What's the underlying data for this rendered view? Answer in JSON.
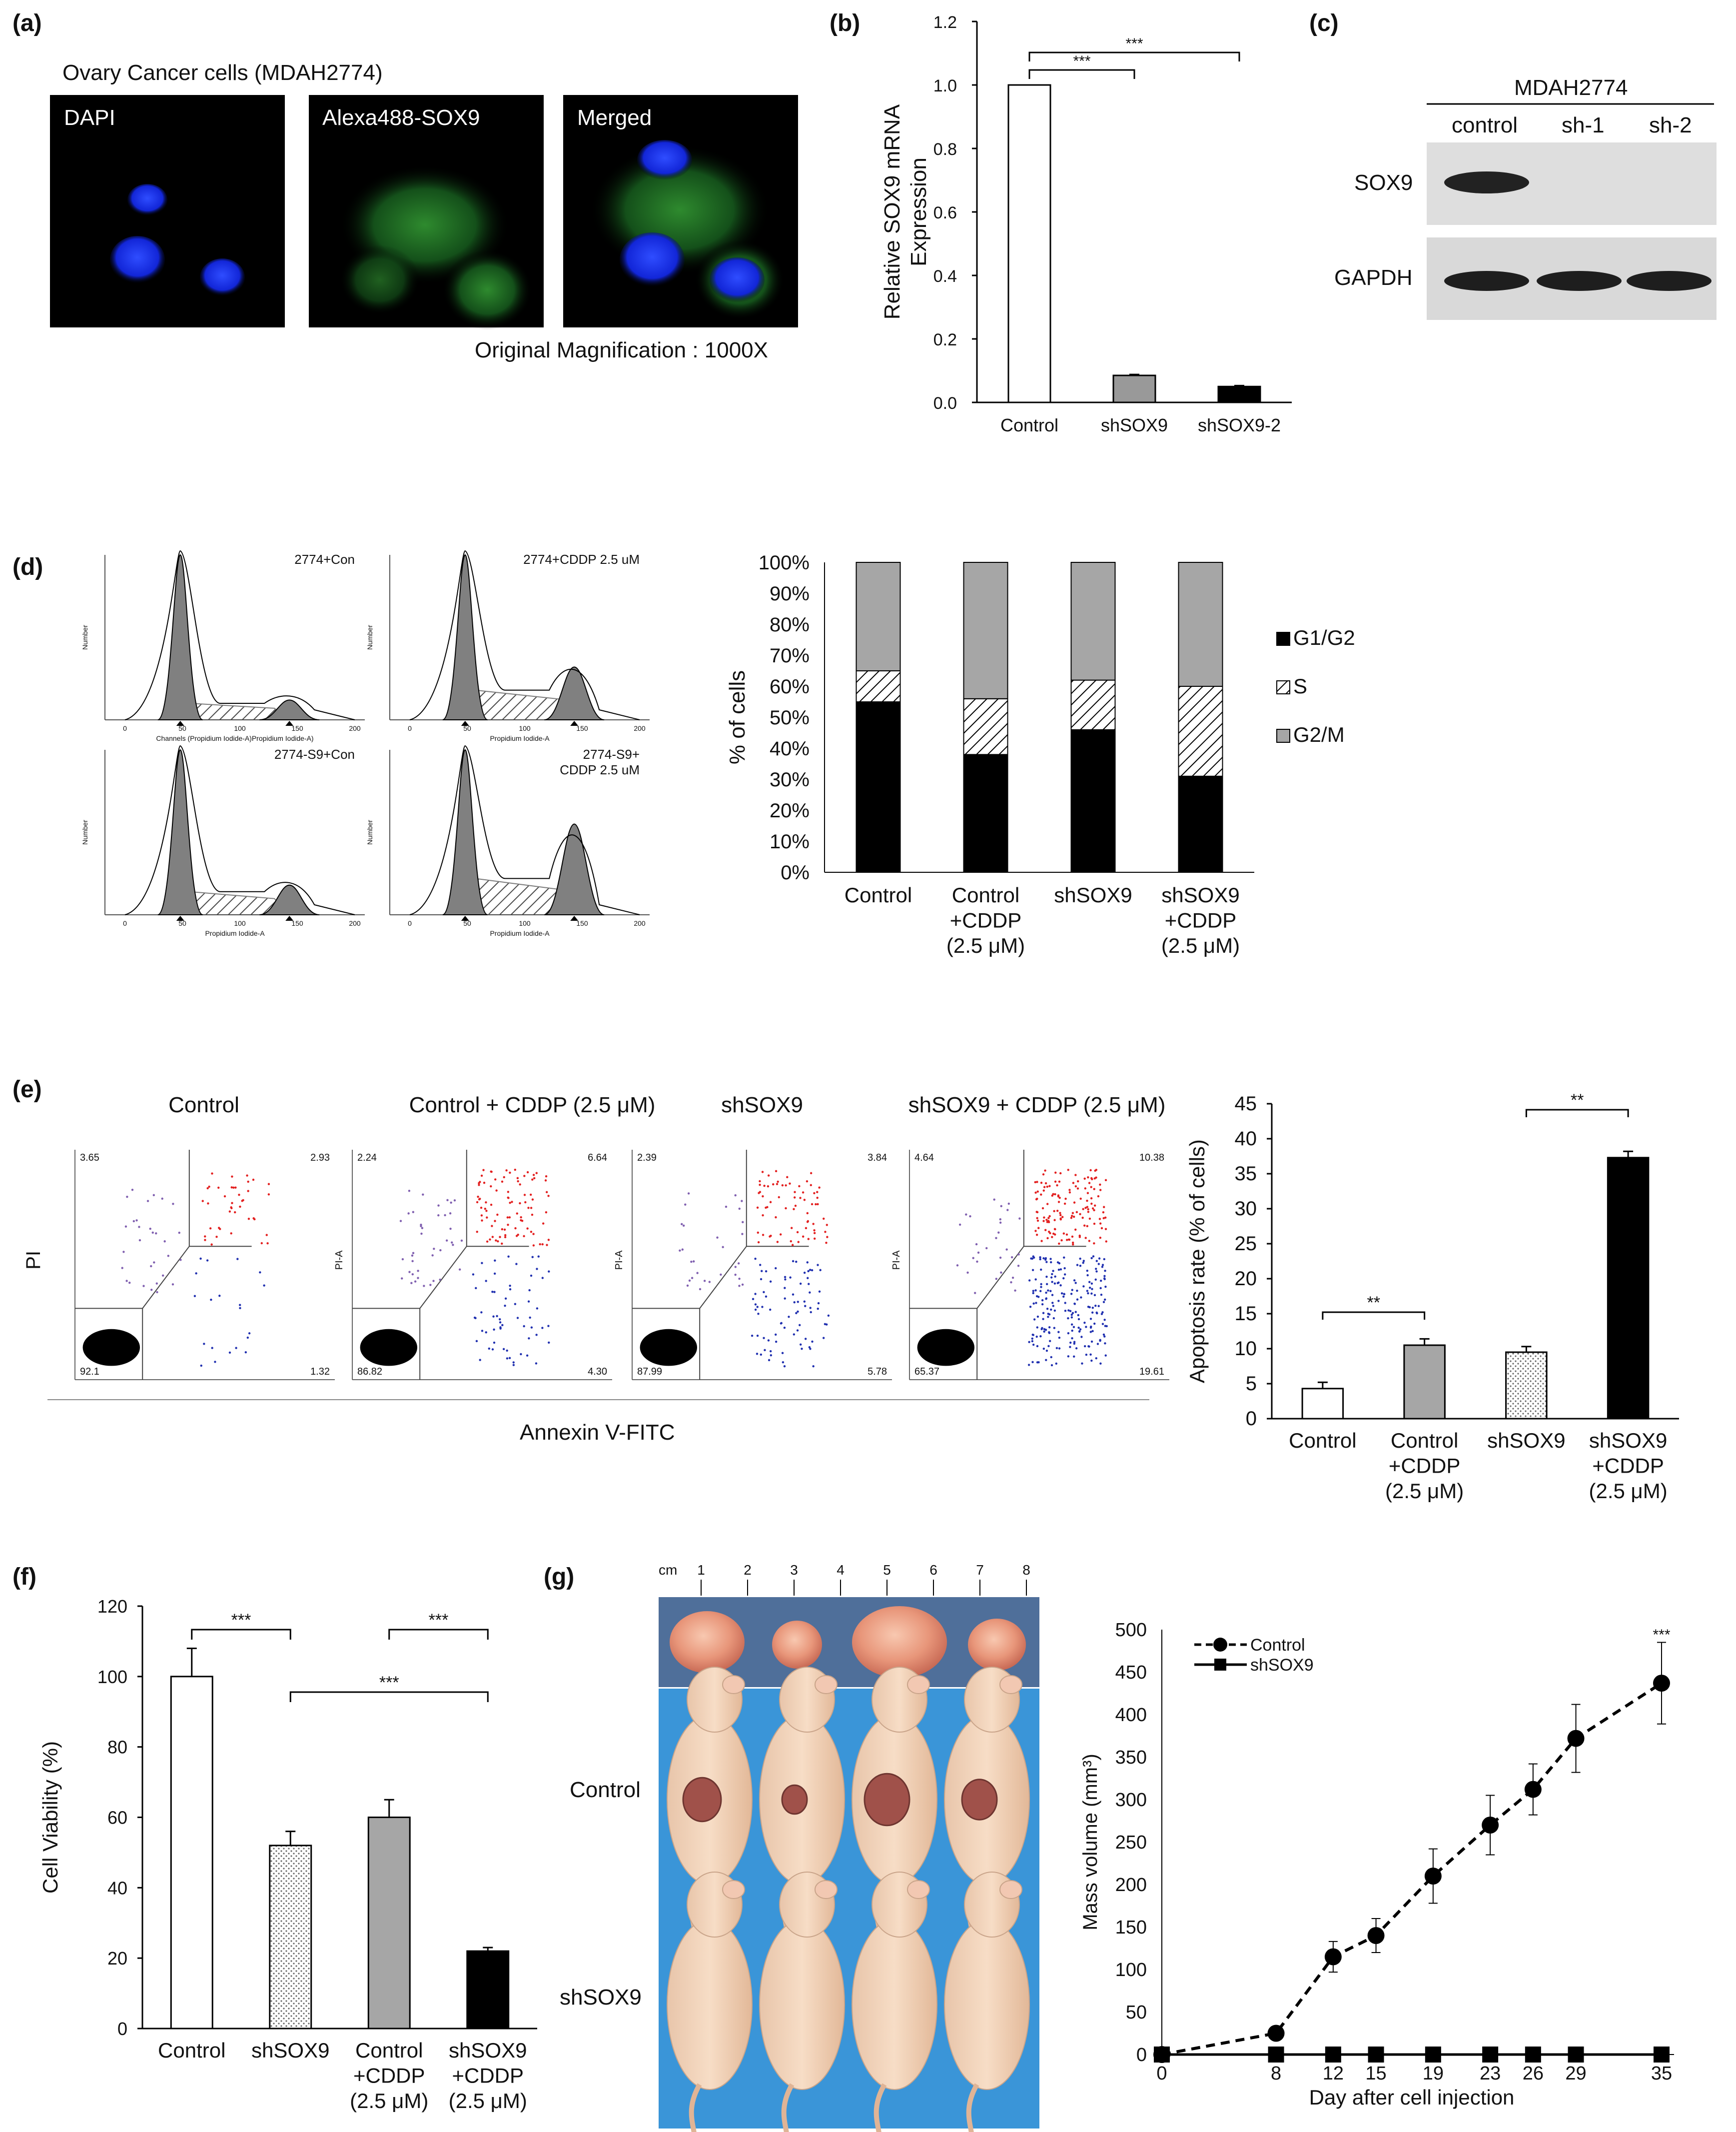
{
  "panels": {
    "a": {
      "label": "(a)",
      "title": "Ovary Cancer cells (MDAH2774)",
      "images": [
        "DAPI",
        "Alexa488-SOX9",
        "Merged"
      ],
      "caption": "Original Magnification : 1000X"
    },
    "b": {
      "label": "(b)",
      "significance": [
        "***",
        "***"
      ]
    },
    "c": {
      "label": "(c)",
      "cell_line": "MDAH2774",
      "lanes": [
        "control",
        "sh-1",
        "sh-2"
      ],
      "bands": [
        "SOX9",
        "GAPDH"
      ],
      "sox9_intensity": [
        1,
        0,
        0
      ],
      "gapdh_intensity": [
        1,
        1,
        1
      ]
    },
    "d": {
      "label": "(d)",
      "histograms": [
        "2774+Con",
        "2774+CDDP 2.5 uM",
        "2774-S9+Con",
        "2774-S9+\nCDDP 2.5 uM"
      ],
      "hist_axis": {
        "ylabel": "Number",
        "xlabel_top_left": "Channels (Propidium Iodide-A)Propidium Iodide-A)",
        "xlabel": "Propidium Iodide-A",
        "xticks": [
          "0",
          "50",
          "100",
          "150",
          "200"
        ]
      }
    },
    "e": {
      "label": "(e)",
      "plot_titles": [
        "Control",
        "Control + CDDP (2.5 μM)",
        "shSOX9",
        "shSOX9 + CDDP (2.5 μM)"
      ],
      "quadrants": [
        {
          "ul": "3.65",
          "ur": "2.93",
          "ll": "92.1",
          "lr": "1.32"
        },
        {
          "ul": "2.24",
          "ur": "6.64",
          "ll": "86.82",
          "lr": "4.30"
        },
        {
          "ul": "2.39",
          "ur": "3.84",
          "ll": "87.99",
          "lr": "5.78"
        },
        {
          "ul": "4.64",
          "ur": "10.38",
          "ll": "65.37",
          "lr": "19.61"
        }
      ],
      "ylabel": "PI",
      "ylabel_alt": "PI-A",
      "xlabel": "Annexin V-FITC",
      "significance": [
        "**",
        "**"
      ]
    },
    "f": {
      "label": "(f)",
      "significance": [
        "***",
        "***",
        "***"
      ]
    },
    "g": {
      "label": "(g)",
      "ruler": [
        "cm",
        "1",
        "2",
        "3",
        "4",
        "5",
        "6",
        "7",
        "8"
      ],
      "groups": [
        "Control",
        "shSOX9"
      ],
      "significance": "***"
    }
  },
  "chart_data": [
    {
      "id": "b",
      "type": "bar",
      "categories": [
        "Control",
        "shSOX9",
        "shSOX9-2"
      ],
      "values": [
        1.0,
        0.085,
        0.05
      ],
      "errors": [
        0.0,
        0.003,
        0.003
      ],
      "ylabel": "Relative SOX9 mRNA\nExpression",
      "ylim": [
        0,
        1.2
      ],
      "yticks": [
        "0.0",
        "0.2",
        "0.4",
        "0.6",
        "0.8",
        "1.0",
        "1.2"
      ],
      "fills": [
        "#ffffff",
        "#999999",
        "#000000"
      ]
    },
    {
      "id": "d",
      "type": "bar",
      "stacked": true,
      "categories": [
        "Control",
        "Control\n+CDDP\n(2.5 μM)",
        "shSOX9",
        "shSOX9\n+CDDP\n(2.5 μM)"
      ],
      "series": [
        {
          "name": "G1/G2",
          "values": [
            55,
            38,
            46,
            31
          ],
          "color": "#000000"
        },
        {
          "name": "S",
          "values": [
            10,
            18,
            16,
            29
          ],
          "color": "hatch"
        },
        {
          "name": "G2/M",
          "values": [
            35,
            44,
            38,
            40
          ],
          "color": "#a6a6a6"
        }
      ],
      "ylabel": "% of cells",
      "ylim": [
        0,
        100
      ],
      "yticks": [
        "0%",
        "10%",
        "20%",
        "30%",
        "40%",
        "50%",
        "60%",
        "70%",
        "80%",
        "90%",
        "100%"
      ],
      "legend": "right"
    },
    {
      "id": "e",
      "type": "bar",
      "categories": [
        "Control",
        "Control\n+CDDP\n(2.5 μM)",
        "shSOX9",
        "shSOX9\n+CDDP\n(2.5 μM)"
      ],
      "values": [
        4.3,
        10.5,
        9.5,
        37.3
      ],
      "errors": [
        0.9,
        0.9,
        0.8,
        0.9
      ],
      "ylabel": "Apoptosis rate (% of cells)",
      "ylim": [
        0,
        45
      ],
      "yticks": [
        "0",
        "5",
        "10",
        "15",
        "20",
        "25",
        "30",
        "35",
        "40",
        "45"
      ],
      "fills": [
        "#ffffff",
        "#a6a6a6",
        "dots",
        "#000000"
      ]
    },
    {
      "id": "f",
      "type": "bar",
      "categories": [
        "Control",
        "shSOX9",
        "Control\n+CDDP\n(2.5 μM)",
        "shSOX9\n+CDDP\n(2.5 μM)"
      ],
      "values": [
        100,
        52,
        60,
        22
      ],
      "errors": [
        8,
        4,
        5,
        1
      ],
      "ylabel": "Cell Viability (%)",
      "ylim": [
        0,
        120
      ],
      "yticks": [
        "0",
        "20",
        "40",
        "60",
        "80",
        "100",
        "120"
      ],
      "fills": [
        "#ffffff",
        "dots",
        "#a6a6a6",
        "#000000"
      ]
    },
    {
      "id": "g",
      "type": "line",
      "x": [
        0,
        8,
        12,
        15,
        19,
        23,
        26,
        29,
        35
      ],
      "series": [
        {
          "name": "Control",
          "values": [
            0,
            25,
            115,
            140,
            210,
            270,
            312,
            372,
            437
          ],
          "errors": [
            0,
            5,
            18,
            20,
            32,
            35,
            30,
            40,
            48
          ]
        },
        {
          "name": "shSOX9",
          "values": [
            0,
            0,
            0,
            0,
            0,
            0,
            0,
            0,
            0
          ]
        }
      ],
      "xlabel": "Day after cell injection",
      "ylabel": "Mass volume (mm³)",
      "ylim": [
        0,
        500
      ],
      "yticks": [
        "0",
        "50",
        "100",
        "150",
        "200",
        "250",
        "300",
        "350",
        "400",
        "450",
        "500"
      ],
      "xticks": [
        "0",
        "8",
        "12",
        "15",
        "19",
        "23",
        "26",
        "29",
        "35"
      ],
      "legend": "top-left"
    }
  ]
}
